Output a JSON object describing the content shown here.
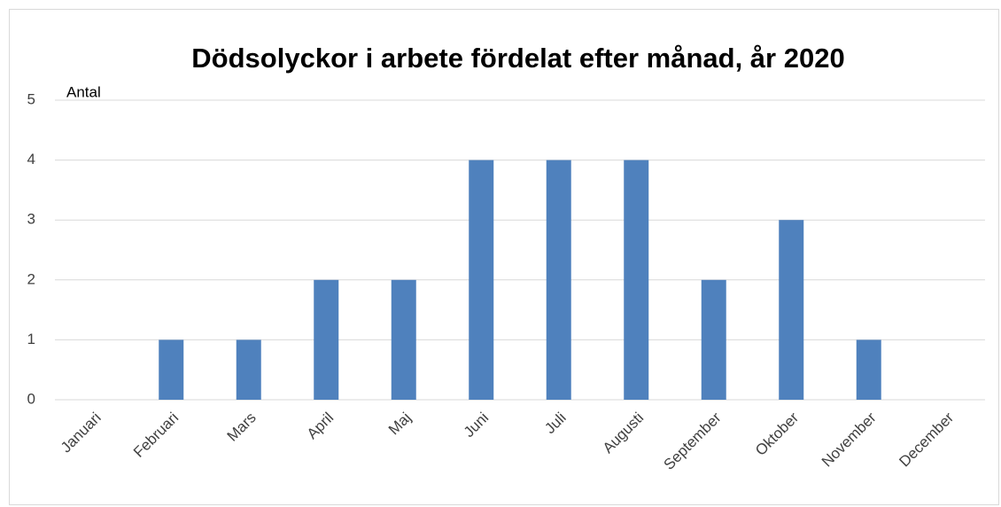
{
  "chart_data": {
    "type": "bar",
    "title": "Dödsolyckor i arbete fördelat efter månad, år 2020",
    "y_axis_label": "Antal",
    "categories": [
      "Januari",
      "Februari",
      "Mars",
      "April",
      "Maj",
      "Juni",
      "Juli",
      "Augusti",
      "September",
      "Oktober",
      "November",
      "December"
    ],
    "values": [
      0,
      1,
      1,
      2,
      2,
      4,
      4,
      4,
      2,
      3,
      1,
      0
    ],
    "color": "#4f81bd",
    "ylim": [
      0,
      5
    ],
    "yticks": [
      0,
      1,
      2,
      3,
      4,
      5
    ],
    "grid": true
  }
}
